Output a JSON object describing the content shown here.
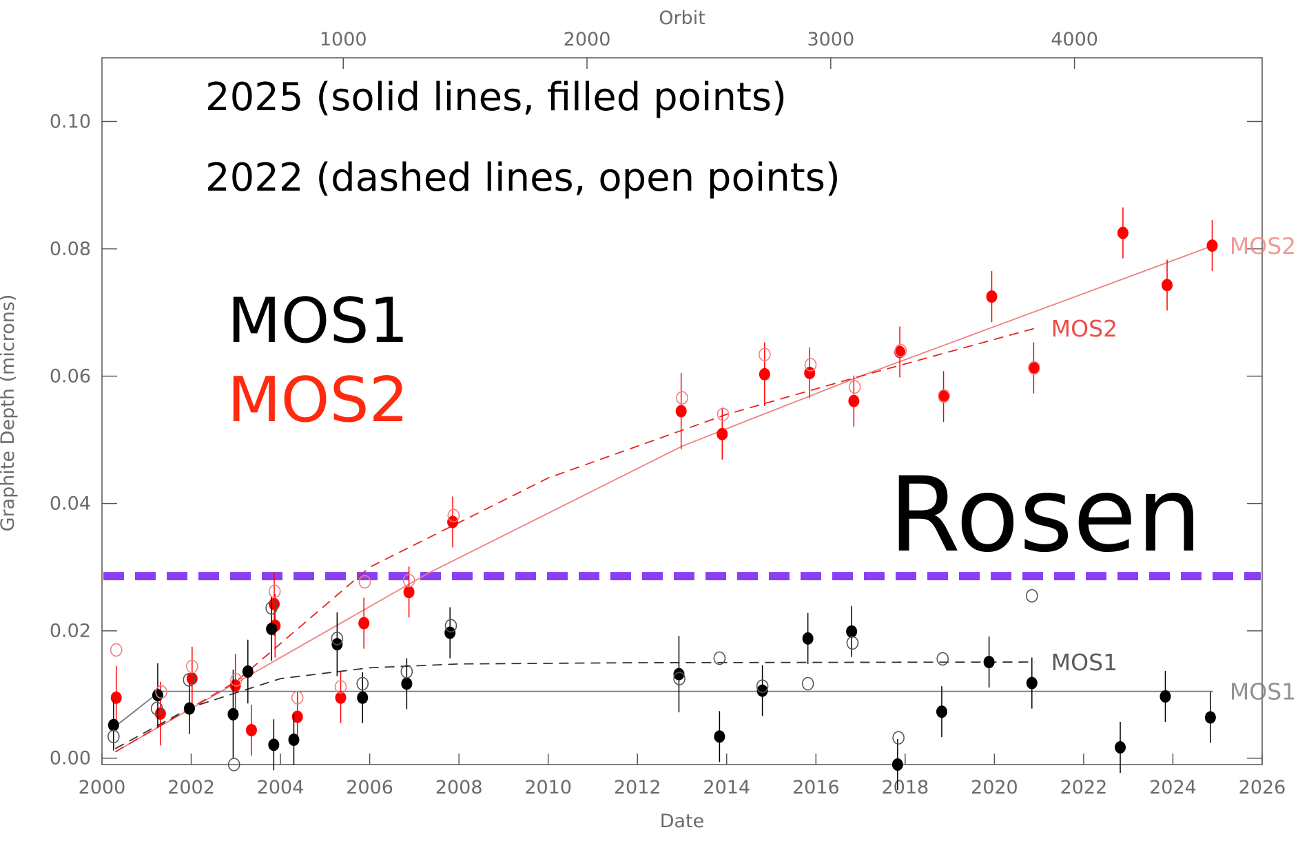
{
  "chart_data": {
    "type": "scatter",
    "xlabel": "Date",
    "x2label": "Orbit",
    "ylabel": "Graphite Depth (microns)",
    "xlim": [
      2000,
      2026
    ],
    "xticks": [
      2000,
      2002,
      2004,
      2006,
      2008,
      2010,
      2012,
      2014,
      2016,
      2018,
      2020,
      2022,
      2024,
      2026
    ],
    "x2lim": [
      10,
      4770
    ],
    "x2ticks": [
      1000,
      2000,
      3000,
      4000
    ],
    "ylim": [
      -0.001,
      0.11
    ],
    "yticks": [
      {
        "value": 0,
        "label": "0.00"
      },
      {
        "value": 0.02,
        "label": "0.02"
      },
      {
        "value": 0.04,
        "label": "0.04"
      },
      {
        "value": 0.06,
        "label": "0.06"
      },
      {
        "value": 0.08,
        "label": "0.08"
      },
      {
        "value": 0.1,
        "label": "0.10"
      }
    ],
    "series": [
      {
        "name": "MOS2 2025",
        "color": "#ff0000",
        "filled": true,
        "x": [
          2000.32,
          2001.31,
          2002.02,
          2002.99,
          2003.35,
          2003.86,
          2003.88,
          2004.38,
          2005.35,
          2005.87,
          2006.88,
          2007.86,
          2012.98,
          2013.9,
          2014.85,
          2015.86,
          2016.85,
          2017.88,
          2018.86,
          2019.94,
          2020.88,
          2022.88,
          2023.87,
          2024.88
        ],
        "values": [
          0.0095,
          0.007,
          0.0125,
          0.0114,
          0.0044,
          0.0242,
          0.0208,
          0.0065,
          0.0095,
          0.0212,
          0.0261,
          0.0371,
          0.0545,
          0.0509,
          0.0603,
          0.0605,
          0.0561,
          0.0638,
          0.0568,
          0.0725,
          0.0613,
          0.0825,
          0.0743,
          0.0805
        ],
        "errors": [
          0.005,
          0.005,
          0.005,
          0.005,
          0.004,
          0.005,
          0.005,
          0.004,
          0.004,
          0.004,
          0.004,
          0.004,
          0.006,
          0.004,
          0.005,
          0.004,
          0.004,
          0.004,
          0.004,
          0.004,
          0.004,
          0.004,
          0.004,
          0.004
        ]
      },
      {
        "name": "MOS1 2025",
        "color": "#000000",
        "filled": true,
        "x": [
          2000.26,
          2001.25,
          2001.96,
          2002.94,
          2003.27,
          2003.8,
          2003.85,
          2004.3,
          2005.27,
          2005.84,
          2006.83,
          2007.8,
          2012.93,
          2013.84,
          2014.8,
          2015.82,
          2016.8,
          2017.83,
          2018.82,
          2019.88,
          2020.84,
          2022.82,
          2023.83,
          2024.84
        ],
        "values": [
          0.0052,
          0.0099,
          0.0078,
          0.0069,
          0.0136,
          0.0203,
          0.0021,
          0.0029,
          0.0179,
          0.0095,
          0.0117,
          0.0197,
          0.0132,
          0.0034,
          0.0106,
          0.0188,
          0.0199,
          -0.001,
          0.0073,
          0.0151,
          0.0118,
          0.0017,
          0.0097,
          0.0064
        ],
        "errors": [
          0.004,
          0.005,
          0.004,
          0.007,
          0.005,
          0.005,
          0.004,
          0.004,
          0.005,
          0.004,
          0.004,
          0.004,
          0.006,
          0.004,
          0.004,
          0.004,
          0.004,
          0.004,
          0.004,
          0.004,
          0.004,
          0.004,
          0.004,
          0.004
        ]
      },
      {
        "name": "MOS2 2022",
        "color": "#f08080",
        "filled": false,
        "x": [
          2000.32,
          2001.33,
          2002.02,
          2003.01,
          2003.87,
          2004.38,
          2005.35,
          2005.89,
          2006.88,
          2007.88,
          2013.0,
          2013.92,
          2014.85,
          2015.88,
          2016.87,
          2017.9,
          2018.87,
          2020.89
        ],
        "values": [
          0.017,
          0.0104,
          0.0144,
          0.0123,
          0.0262,
          0.0095,
          0.0112,
          0.0277,
          0.0279,
          0.0381,
          0.0566,
          0.054,
          0.0634,
          0.0618,
          0.0583,
          0.064,
          0.0569,
          0.0613
        ]
      },
      {
        "name": "MOS1 2022",
        "color": "#555555",
        "filled": false,
        "x": [
          2000.26,
          2001.23,
          2001.95,
          2002.96,
          2003.8,
          2005.27,
          2005.84,
          2006.83,
          2007.82,
          2012.94,
          2013.84,
          2014.8,
          2015.82,
          2016.82,
          2017.85,
          2018.84,
          2020.84
        ],
        "values": [
          0.0034,
          0.0078,
          0.0123,
          -0.001,
          0.0236,
          0.0188,
          0.0117,
          0.0136,
          0.0208,
          0.0125,
          0.0157,
          0.0113,
          0.0117,
          0.0181,
          0.0032,
          0.0156,
          0.0255
        ]
      }
    ],
    "fits": [
      {
        "name": "MOS2",
        "color": "#f08080",
        "dashed": false,
        "x": [
          2000.3,
          2007.3,
          2013,
          2017,
          2024.9
        ],
        "values": [
          0.001,
          0.029,
          0.049,
          0.06,
          0.0805
        ]
      },
      {
        "name": "MOS2",
        "color": "#e8231e",
        "dashed": true,
        "x": [
          2000.3,
          2003,
          2006,
          2010,
          2014,
          2017,
          2020.9
        ],
        "values": [
          0.001,
          0.012,
          0.03,
          0.044,
          0.054,
          0.06,
          0.0675
        ]
      },
      {
        "name": "MOS1",
        "color": "#777777",
        "dashed": false,
        "x": [
          2000.3,
          2001.3,
          2024.9
        ],
        "values": [
          0.005,
          0.0105,
          0.0105
        ]
      },
      {
        "name": "MOS1",
        "color": "#333333",
        "dashed": true,
        "x": [
          2000.3,
          2002,
          2004,
          2006,
          2008,
          2012,
          2020.9
        ],
        "values": [
          0.0015,
          0.008,
          0.0125,
          0.0142,
          0.0148,
          0.015,
          0.0151
        ]
      }
    ],
    "threshold": {
      "value": 0.0286,
      "color": "#8b3ff5"
    },
    "annotations": [
      "2025 (solid lines, filled points)",
      "2022 (dashed lines, open points)",
      "MOS1",
      "MOS2",
      "Rosen"
    ]
  }
}
